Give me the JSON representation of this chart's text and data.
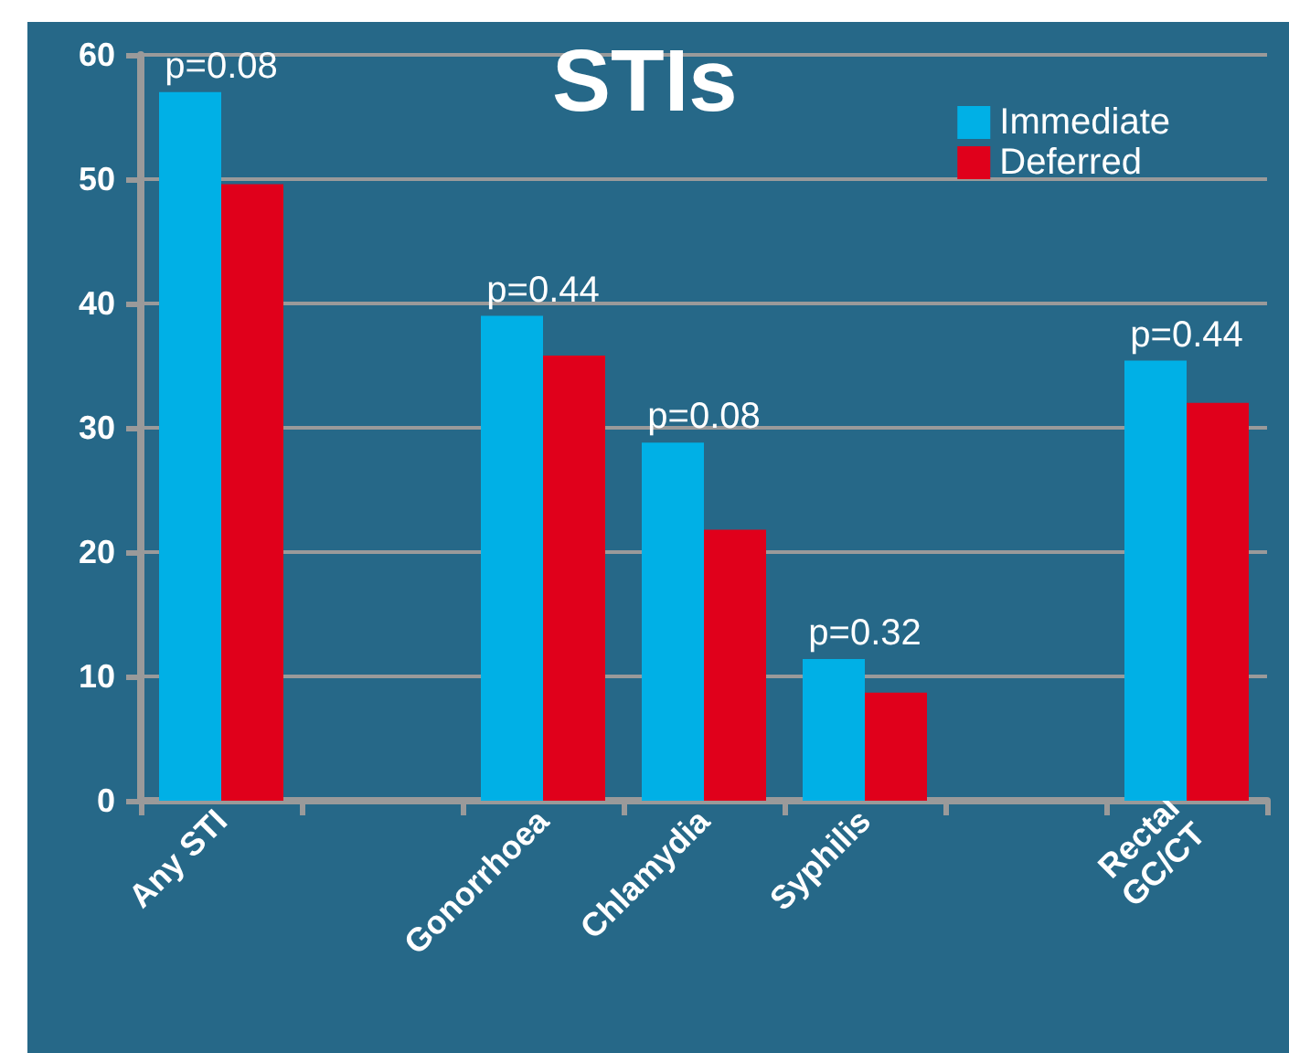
{
  "chart_data": {
    "type": "bar",
    "title": "STIs",
    "categories": [
      "Any STI",
      null,
      "Gonorrhoea",
      "Chlamydia",
      "Syphilis",
      null,
      "Rectal\nGC/CT"
    ],
    "series": [
      {
        "name": "Immediate",
        "color": "#00b0e6",
        "values": [
          57,
          null,
          39,
          28.8,
          11.4,
          null,
          35.4
        ]
      },
      {
        "name": "Deferred",
        "color": "#e0001b",
        "values": [
          49.6,
          null,
          35.8,
          21.8,
          8.7,
          null,
          32
        ]
      }
    ],
    "ylim": [
      0,
      60
    ],
    "yticks": [
      0,
      10,
      20,
      30,
      40,
      50,
      60
    ],
    "grid": "y",
    "legend": "top right",
    "annotations": [
      {
        "text": "p=0.08",
        "x": "Any STI",
        "y": 57
      },
      {
        "text": "p=0.44",
        "x": "Gonorrhoea",
        "y": 39
      },
      {
        "text": "p=0.08",
        "x": "Chlamydia",
        "y": 28.8
      },
      {
        "text": "p=0.32",
        "x": "Syphilis",
        "y": 11.4
      },
      {
        "text": "p=0.44",
        "x": "Rectal\nGC/CT",
        "y": 35.4
      }
    ]
  }
}
